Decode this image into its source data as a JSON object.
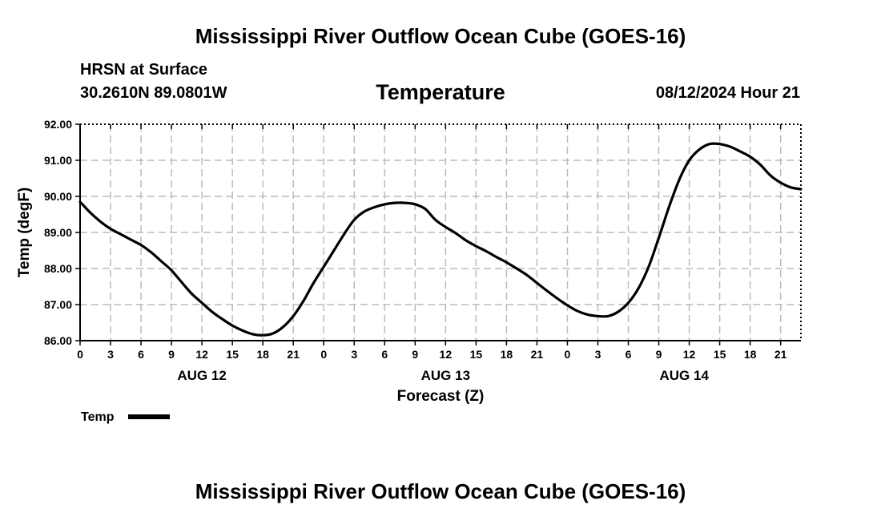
{
  "page": {
    "title": "Mississippi River Outflow Ocean Cube (GOES-16)",
    "footer_title": "Mississippi River Outflow Ocean Cube (GOES-16)",
    "station": "HRSN at Surface",
    "coords": "30.2610N  89.0801W",
    "variable": "Temperature",
    "date": "08/12/2024 Hour 21"
  },
  "chart_data": {
    "type": "line",
    "title": "Temperature",
    "xlabel": "Forecast (Z)",
    "ylabel": "Temp (degF)",
    "ylim": [
      86.0,
      92.0
    ],
    "yticks": [
      "86.00",
      "87.00",
      "88.00",
      "89.00",
      "90.00",
      "91.00",
      "92.00"
    ],
    "xlim": [
      0,
      71
    ],
    "x_ticks": [
      {
        "x": 0,
        "label": "0"
      },
      {
        "x": 3,
        "label": "3"
      },
      {
        "x": 6,
        "label": "6"
      },
      {
        "x": 9,
        "label": "9"
      },
      {
        "x": 12,
        "label": "12"
      },
      {
        "x": 15,
        "label": "15"
      },
      {
        "x": 18,
        "label": "18"
      },
      {
        "x": 21,
        "label": "21"
      },
      {
        "x": 24,
        "label": "0"
      },
      {
        "x": 27,
        "label": "3"
      },
      {
        "x": 30,
        "label": "6"
      },
      {
        "x": 33,
        "label": "9"
      },
      {
        "x": 36,
        "label": "12"
      },
      {
        "x": 39,
        "label": "15"
      },
      {
        "x": 42,
        "label": "18"
      },
      {
        "x": 45,
        "label": "21"
      },
      {
        "x": 48,
        "label": "0"
      },
      {
        "x": 51,
        "label": "3"
      },
      {
        "x": 54,
        "label": "6"
      },
      {
        "x": 57,
        "label": "9"
      },
      {
        "x": 60,
        "label": "12"
      },
      {
        "x": 63,
        "label": "15"
      },
      {
        "x": 66,
        "label": "18"
      },
      {
        "x": 69,
        "label": "21"
      }
    ],
    "day_labels": [
      {
        "x": 12,
        "label": "AUG 12"
      },
      {
        "x": 36,
        "label": "AUG 13"
      },
      {
        "x": 59.5,
        "label": "AUG 14"
      }
    ],
    "legend": "Temp",
    "series": [
      {
        "name": "Temp",
        "color": "#000000",
        "x": [
          0,
          1,
          2,
          3,
          4,
          5,
          6,
          7,
          8,
          9,
          10,
          11,
          12,
          13,
          14,
          15,
          16,
          17,
          18,
          19,
          20,
          21,
          22,
          23,
          24,
          25,
          26,
          27,
          28,
          29,
          30,
          31,
          32,
          33,
          34,
          35,
          36,
          37,
          38,
          39,
          40,
          41,
          42,
          43,
          44,
          45,
          46,
          47,
          48,
          49,
          50,
          51,
          52,
          53,
          54,
          55,
          56,
          57,
          58,
          59,
          60,
          61,
          62,
          63,
          64,
          65,
          66,
          67,
          68,
          69,
          70,
          71
        ],
        "values": [
          89.85,
          89.55,
          89.3,
          89.1,
          88.95,
          88.8,
          88.65,
          88.45,
          88.2,
          87.95,
          87.62,
          87.3,
          87.05,
          86.8,
          86.6,
          86.42,
          86.28,
          86.18,
          86.15,
          86.2,
          86.38,
          86.68,
          87.1,
          87.6,
          88.05,
          88.5,
          88.95,
          89.35,
          89.58,
          89.7,
          89.78,
          89.82,
          89.82,
          89.78,
          89.65,
          89.35,
          89.15,
          88.98,
          88.78,
          88.62,
          88.48,
          88.32,
          88.17,
          88.0,
          87.82,
          87.6,
          87.38,
          87.17,
          86.98,
          86.82,
          86.72,
          86.68,
          86.68,
          86.8,
          87.05,
          87.45,
          88.05,
          88.85,
          89.7,
          90.45,
          91.0,
          91.3,
          91.45,
          91.45,
          91.38,
          91.25,
          91.1,
          90.88,
          90.58,
          90.38,
          90.25,
          90.2
        ]
      }
    ]
  }
}
